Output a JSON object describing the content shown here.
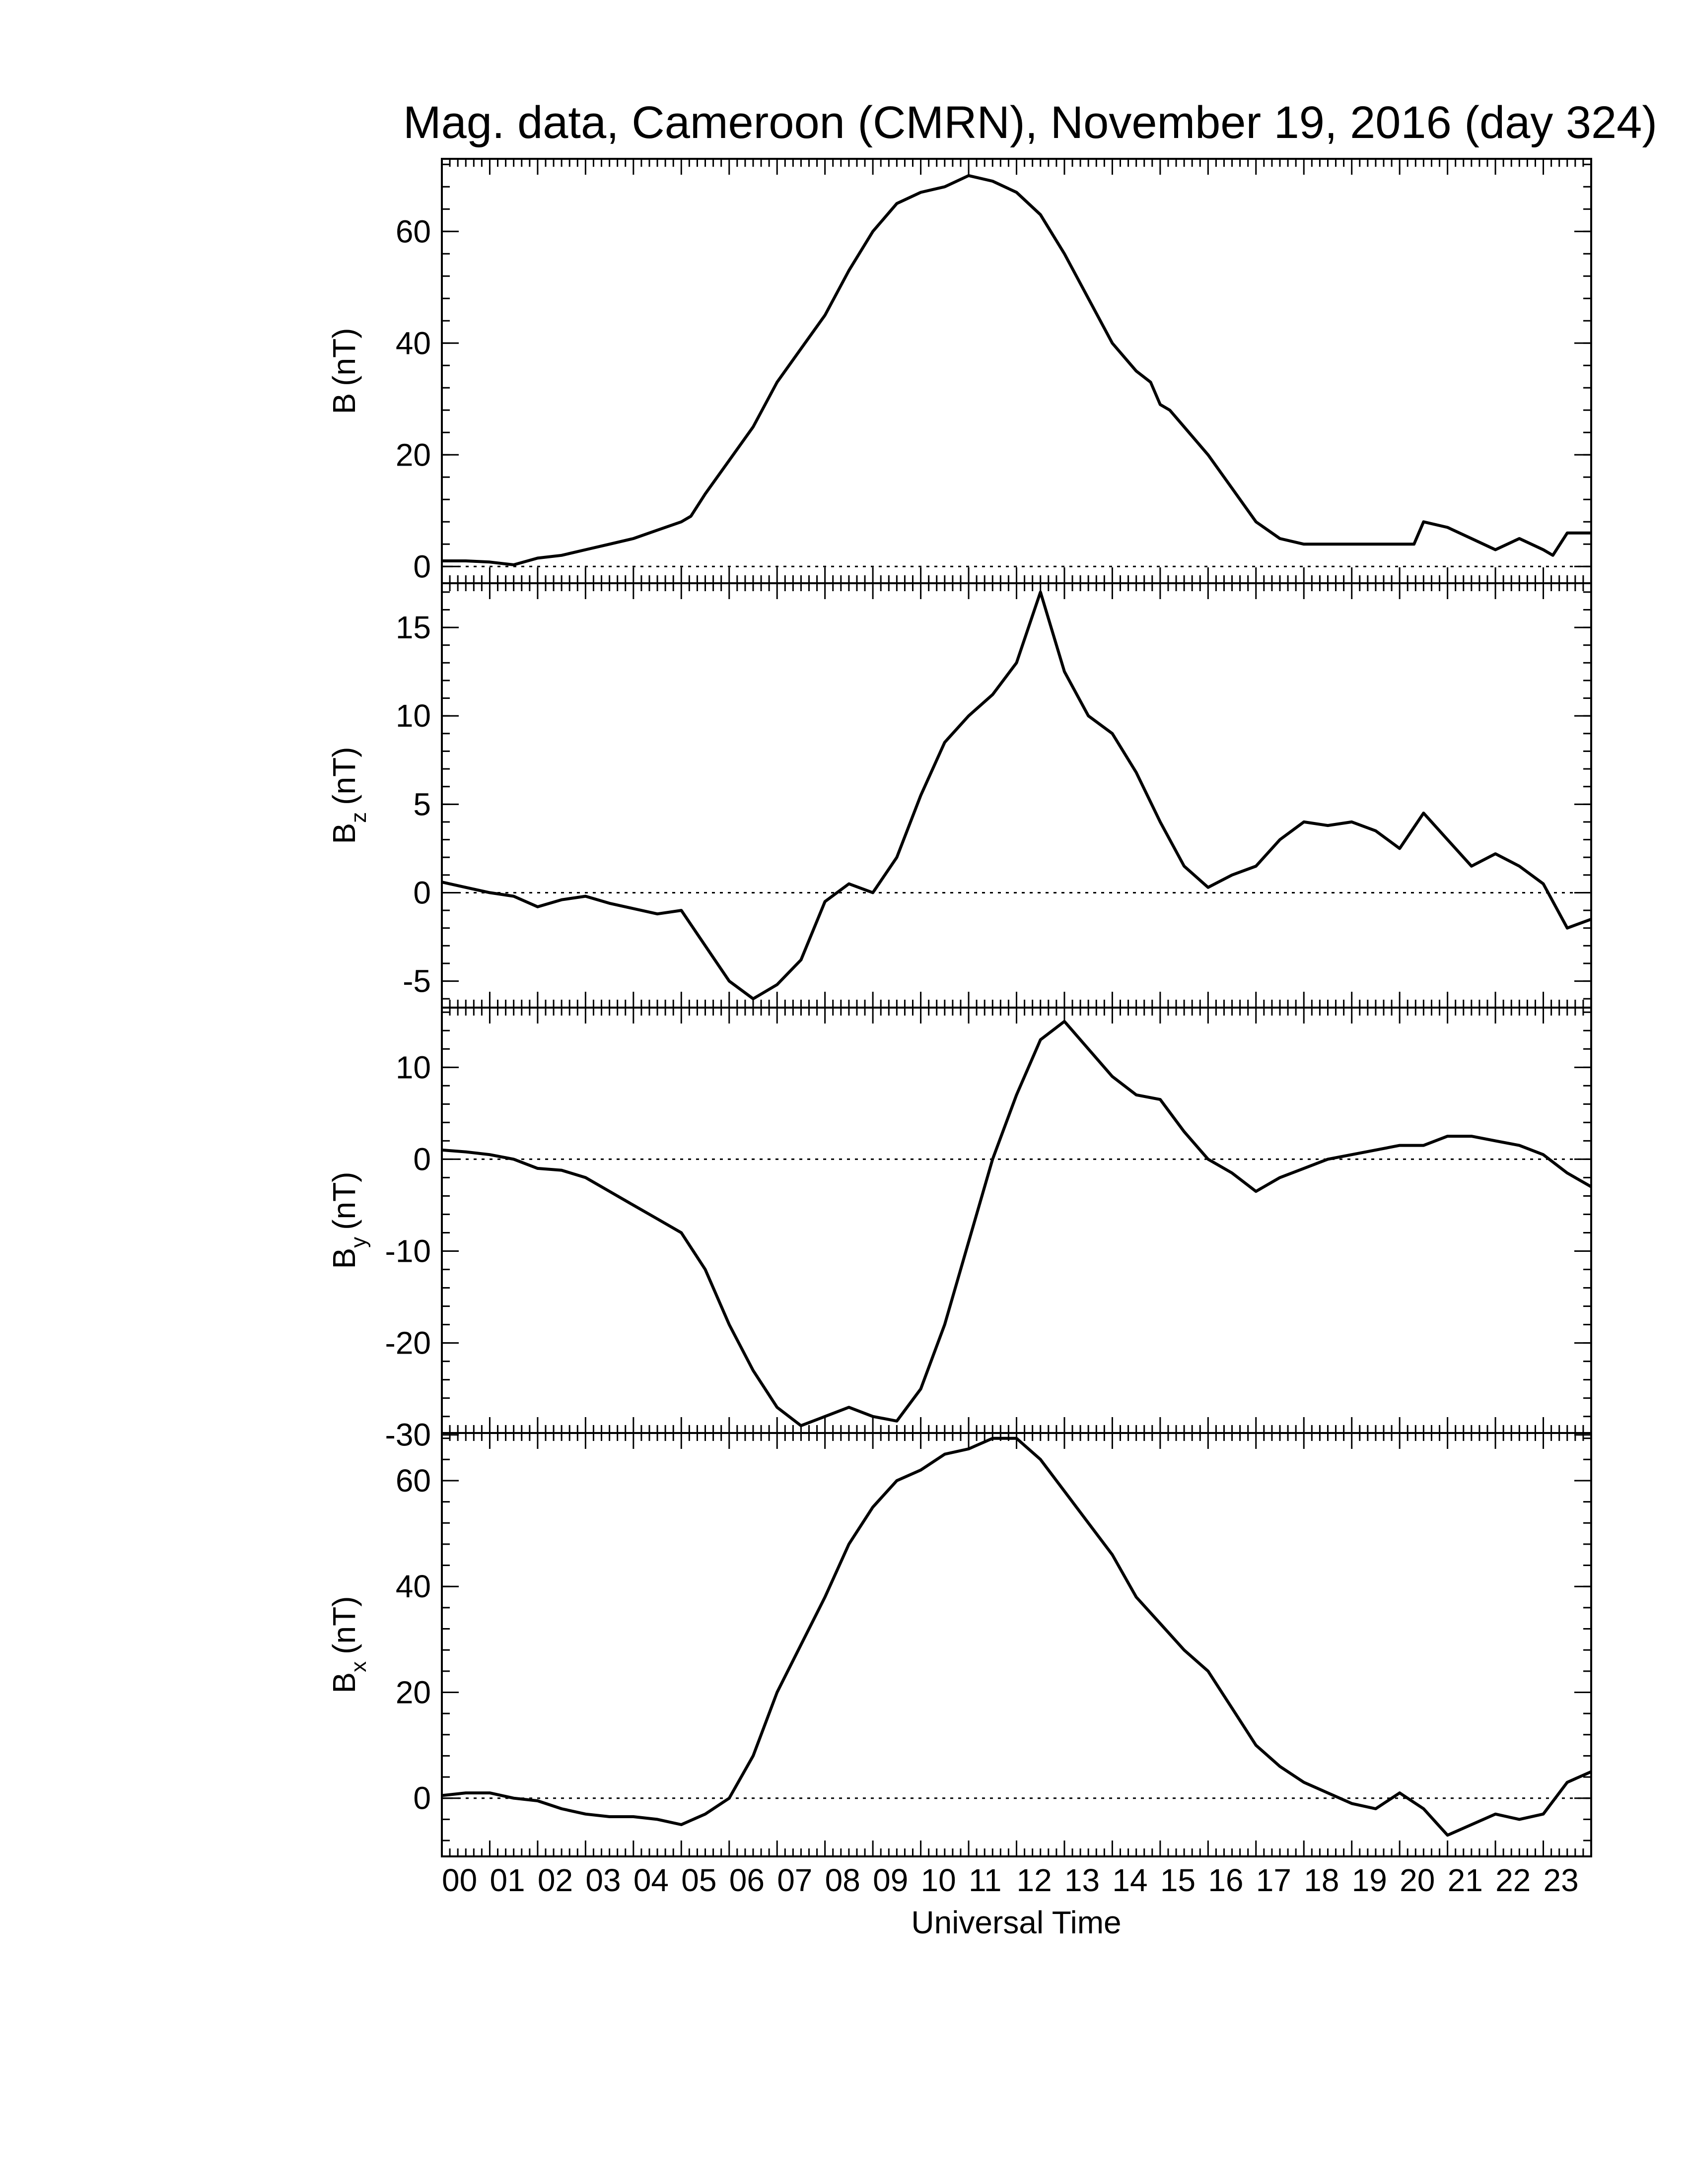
{
  "chart_data": {
    "type": "line",
    "title": "Mag. data, Cameroon (CMRN), November 19, 2016 (day 324)",
    "xlabel": "Universal Time",
    "x_tick_labels": [
      "00",
      "01",
      "02",
      "03",
      "04",
      "05",
      "06",
      "07",
      "08",
      "09",
      "10",
      "11",
      "12",
      "13",
      "14",
      "15",
      "16",
      "17",
      "18",
      "19",
      "20",
      "21",
      "22",
      "23"
    ],
    "xlim": [
      0,
      24
    ],
    "zero_line": "dotted",
    "panels": [
      {
        "ylabel_main": "B",
        "ylabel_sub": "",
        "ylabel_unit": "(nT)",
        "ylim": [
          -3,
          73
        ],
        "yticks": [
          0,
          20,
          40,
          60
        ],
        "ytick_labels": [
          "0",
          "20",
          "40",
          "60"
        ],
        "x": [
          0,
          0.5,
          1,
          1.5,
          2,
          2.5,
          3,
          3.5,
          4,
          4.5,
          5,
          5.2,
          5.5,
          6,
          6.5,
          7,
          7.5,
          8,
          8.5,
          9,
          9.5,
          10,
          10.5,
          11,
          11.5,
          12,
          12.5,
          13,
          13.5,
          14,
          14.5,
          14.8,
          15,
          15.2,
          15.5,
          16,
          16.5,
          17,
          17.5,
          18,
          18.5,
          19,
          19.5,
          20,
          20.3,
          20.5,
          21,
          21.5,
          22,
          22.5,
          23,
          23.2,
          23.5,
          24
        ],
        "y": [
          1,
          1,
          0.8,
          0.3,
          1.5,
          2,
          3,
          4,
          5,
          6.5,
          8,
          9,
          13,
          19,
          25,
          33,
          39,
          45,
          53,
          60,
          65,
          67,
          68,
          70,
          69,
          67,
          63,
          56,
          48,
          40,
          35,
          33,
          29,
          28,
          25,
          20,
          14,
          8,
          5,
          4,
          4,
          4,
          4,
          4,
          4,
          8,
          7,
          5,
          3,
          5,
          3,
          2,
          6,
          6
        ]
      },
      {
        "ylabel_main": "B",
        "ylabel_sub": "z",
        "ylabel_unit": "(nT)",
        "ylim": [
          -6.5,
          17.5
        ],
        "yticks": [
          -5,
          0,
          5,
          10,
          15
        ],
        "ytick_labels": [
          "-5",
          "0",
          "5",
          "10",
          "15"
        ],
        "x": [
          0,
          0.5,
          1,
          1.5,
          2,
          2.5,
          3,
          3.5,
          4,
          4.5,
          5,
          5.5,
          6,
          6.5,
          7,
          7.5,
          8,
          8.5,
          9,
          9.5,
          10,
          10.5,
          11,
          11.5,
          12,
          12.5,
          13,
          13.5,
          14,
          14.5,
          15,
          15.5,
          16,
          16.5,
          17,
          17.5,
          18,
          18.5,
          19,
          19.5,
          20,
          20.5,
          21,
          21.5,
          22,
          22.5,
          23,
          23.5,
          24
        ],
        "y": [
          0.6,
          0.3,
          0,
          -0.2,
          -0.8,
          -0.4,
          -0.2,
          -0.6,
          -0.9,
          -1.2,
          -1,
          -3,
          -5,
          -6,
          -5.2,
          -3.8,
          -0.5,
          0.5,
          0,
          2,
          5.5,
          8.5,
          10,
          11.2,
          13,
          17,
          12.5,
          10,
          9,
          6.8,
          4,
          1.5,
          0.3,
          1,
          1.5,
          3,
          4,
          3.8,
          4,
          3.5,
          2.5,
          4.5,
          3,
          1.5,
          2.2,
          1.5,
          0.5,
          -2,
          -1.5
        ]
      },
      {
        "ylabel_main": "B",
        "ylabel_sub": "y",
        "ylabel_unit": "(nT)",
        "ylim": [
          -29.8,
          16.5
        ],
        "yticks": [
          -30,
          -20,
          -10,
          0,
          10
        ],
        "ytick_labels": [
          "-30",
          "-20",
          "-10",
          "0",
          "10"
        ],
        "x": [
          0,
          0.5,
          1,
          1.5,
          2,
          2.5,
          3,
          3.5,
          4,
          4.5,
          5,
          5.5,
          6,
          6.5,
          7,
          7.5,
          8,
          8.5,
          9,
          9.5,
          10,
          10.5,
          11,
          11.5,
          12,
          12.5,
          13,
          13.5,
          14,
          14.5,
          15,
          15.5,
          16,
          16.5,
          17,
          17.5,
          18,
          18.5,
          19,
          19.5,
          20,
          20.5,
          21,
          21.5,
          22,
          22.5,
          23,
          23.5,
          24
        ],
        "y": [
          1,
          0.8,
          0.5,
          0,
          -1,
          -1.2,
          -2,
          -3.5,
          -5,
          -6.5,
          -8,
          -12,
          -18,
          -23,
          -27,
          -29,
          -28,
          -27,
          -28,
          -28.5,
          -25,
          -18,
          -9,
          0,
          7,
          13,
          15,
          12,
          9,
          7,
          6.5,
          3,
          0,
          -1.5,
          -3.5,
          -2,
          -1,
          0,
          0.5,
          1,
          1.5,
          1.5,
          2.5,
          2.5,
          2,
          1.5,
          0.5,
          -1.5,
          -3
        ]
      },
      {
        "ylabel_main": "B",
        "ylabel_sub": "x",
        "ylabel_unit": "(nT)",
        "ylim": [
          -11,
          69
        ],
        "yticks": [
          0,
          20,
          40,
          60
        ],
        "ytick_labels": [
          "0",
          "20",
          "40",
          "60"
        ],
        "x": [
          0,
          0.5,
          1,
          1.5,
          2,
          2.5,
          3,
          3.5,
          4,
          4.5,
          5,
          5.5,
          6,
          6.5,
          7,
          7.5,
          8,
          8.5,
          9,
          9.5,
          10,
          10.5,
          11,
          11.5,
          12,
          12.5,
          13,
          13.5,
          14,
          14.5,
          15,
          15.5,
          16,
          16.5,
          17,
          17.5,
          18,
          18.5,
          19,
          19.5,
          20,
          20.5,
          21,
          21.5,
          22,
          22.5,
          23,
          23.5,
          24
        ],
        "y": [
          0.5,
          1,
          1,
          0,
          -0.5,
          -2,
          -3,
          -3.5,
          -3.5,
          -4,
          -5,
          -3,
          0,
          8,
          20,
          29,
          38,
          48,
          55,
          60,
          62,
          65,
          66,
          68,
          68,
          64,
          58,
          52,
          46,
          38,
          33,
          28,
          24,
          17,
          10,
          6,
          3,
          1,
          -1,
          -2,
          1,
          -2,
          -7,
          -5,
          -3,
          -4,
          -3,
          3,
          5
        ]
      }
    ]
  }
}
